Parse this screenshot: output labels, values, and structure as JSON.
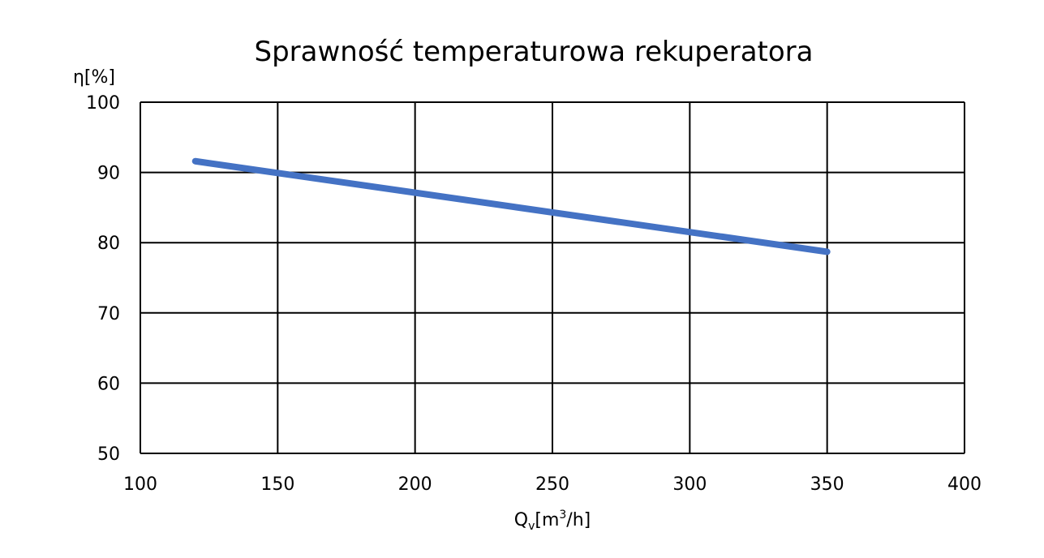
{
  "chart_data": {
    "type": "line",
    "title": "Sprawność temperaturowa rekuperatora",
    "ylabel": "η[%]",
    "xlabel": {
      "main": "Q",
      "subscript": "v",
      "unit_pre": "[m",
      "unit_sup": "3",
      "unit_post": "/h]"
    },
    "xlim": [
      100,
      400
    ],
    "ylim": [
      50,
      100
    ],
    "x_ticks": [
      100,
      150,
      200,
      250,
      300,
      350,
      400
    ],
    "y_ticks": [
      50,
      60,
      70,
      80,
      90,
      100
    ],
    "grid": true,
    "legend": "none",
    "series": [
      {
        "color": "#4472C4",
        "x": [
          120,
          350
        ],
        "y": [
          91.6,
          78.7
        ]
      }
    ]
  }
}
